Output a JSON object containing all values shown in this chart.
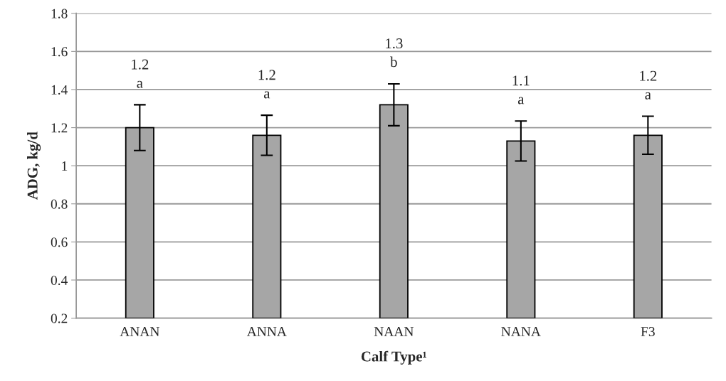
{
  "chart_data": {
    "type": "bar",
    "xlabel": "Calf Type¹",
    "ylabel": "ADG, kg/d",
    "categories": [
      "ANAN",
      "ANNA",
      "NAAN",
      "NANA",
      "F3"
    ],
    "values": [
      1.2,
      1.16,
      1.32,
      1.13,
      1.16
    ],
    "errors": [
      0.12,
      0.105,
      0.11,
      0.105,
      0.1
    ],
    "value_labels": [
      "1.2\na",
      "1.2\na",
      "1.3\nb",
      "1.1\na",
      "1.2\na"
    ],
    "color": "#a6a6a6",
    "ylim": [
      0.2,
      1.8
    ],
    "yticks": [
      0.2,
      0.4,
      0.6,
      0.8,
      1,
      1.2,
      1.4,
      1.6,
      1.8
    ],
    "grid": "y",
    "legend": false
  }
}
